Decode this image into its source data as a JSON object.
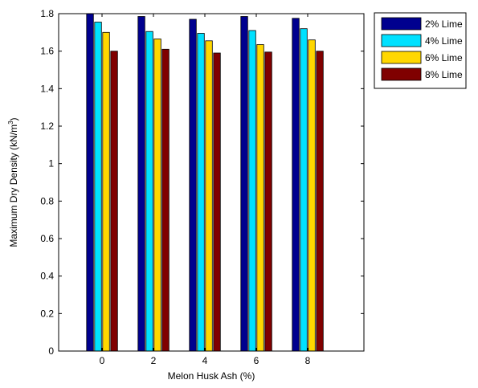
{
  "chart_data": {
    "type": "bar",
    "categories": [
      "0",
      "2",
      "4",
      "6",
      "8"
    ],
    "series": [
      {
        "name": "2% Lime",
        "color": "#00008f",
        "values": [
          1.8,
          1.785,
          1.77,
          1.785,
          1.775
        ]
      },
      {
        "name": "4% Lime",
        "color": "#00e1ff",
        "values": [
          1.755,
          1.705,
          1.695,
          1.71,
          1.72
        ]
      },
      {
        "name": "6% Lime",
        "color": "#ffd700",
        "values": [
          1.7,
          1.665,
          1.655,
          1.635,
          1.66
        ]
      },
      {
        "name": "8% Lime",
        "color": "#800000",
        "values": [
          1.6,
          1.61,
          1.59,
          1.595,
          1.6
        ]
      }
    ],
    "xlabel": "Melon Husk Ash (%)",
    "ylabel_main": "Maximum Dry Density (kN/m",
    "ylabel_sup": "3",
    "ylabel_end": ")",
    "ylim": [
      0,
      1.8
    ],
    "yticks": [
      "0",
      "0.2",
      "0.4",
      "0.6",
      "0.8",
      "1",
      "1.2",
      "1.4",
      "1.6",
      "1.8"
    ],
    "grid": false,
    "legend_position": "outside-top-right"
  }
}
